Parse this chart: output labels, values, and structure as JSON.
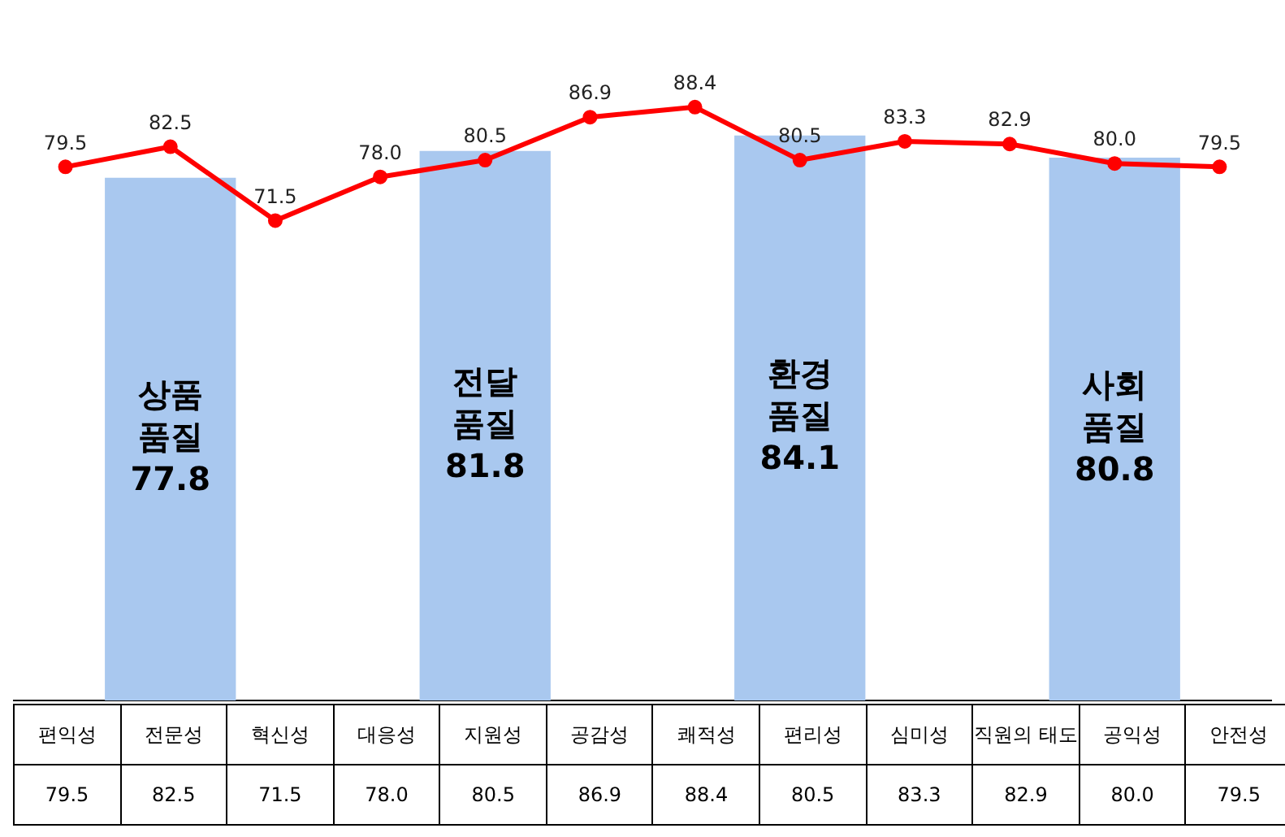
{
  "chart_data": {
    "type": "bar",
    "categories": [
      "편익성",
      "전문성",
      "혁신성",
      "대응성",
      "지원성",
      "공감성",
      "쾌적성",
      "편리성",
      "심미성",
      "직원의 태도",
      "공익성",
      "안전성"
    ],
    "series": [
      {
        "color": "#a9c8ef",
        "values": [
          null,
          77.8,
          null,
          null,
          81.8,
          null,
          null,
          84.1,
          null,
          null,
          80.8,
          null
        ],
        "value_labels": [
          null,
          "77.8",
          null,
          null,
          "81.8",
          null,
          null,
          "84.1",
          null,
          null,
          "80.8",
          null
        ]
      },
      {
        "type": "line",
        "color": "#ff0000",
        "values": [
          79.5,
          82.5,
          71.5,
          78.0,
          80.5,
          86.9,
          88.4,
          80.5,
          83.3,
          82.9,
          80.0,
          79.5
        ],
        "value_labels": [
          "79.5",
          "82.5",
          "71.5",
          "78.0",
          "80.5",
          "86.9",
          "88.4",
          "80.5",
          "83.3",
          "82.9",
          "80.0",
          "79.5"
        ]
      }
    ],
    "annotations": [
      "상품 품질",
      "전달 품질",
      "환경 품질",
      "사회 품질"
    ],
    "data_labels": true,
    "marker": "circle",
    "legend": false,
    "grid": false
  }
}
